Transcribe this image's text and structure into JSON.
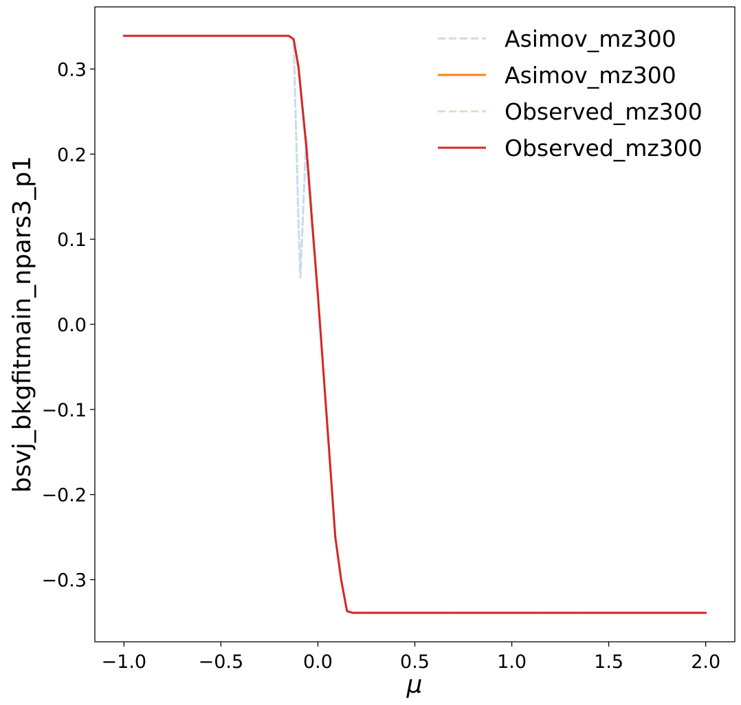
{
  "chart_data": {
    "type": "line",
    "title": "",
    "xlabel": "μ",
    "ylabel": "bsvj_bkgfitmain_npars3_p1",
    "xlim": [
      -1.15,
      2.15
    ],
    "ylim": [
      -0.373,
      0.373
    ],
    "x_ticks": [
      -1.0,
      -0.5,
      0.0,
      0.5,
      1.0,
      1.5,
      2.0
    ],
    "x_tick_labels": [
      "−1.0",
      "−0.5",
      "0.0",
      "0.5",
      "1.0",
      "1.5",
      "2.0"
    ],
    "y_ticks": [
      0.3,
      0.2,
      0.1,
      0.0,
      -0.1,
      -0.2,
      -0.3
    ],
    "y_tick_labels": [
      "0.3",
      "0.2",
      "0.1",
      "0.0",
      "−0.1",
      "−0.2",
      "−0.3"
    ],
    "grid": false,
    "legend_position": "top-right",
    "series": [
      {
        "name": "Asimov_mz300",
        "color": "#c6dbef",
        "style": "dashed",
        "x": [
          -1.0,
          -0.5,
          -0.15,
          -0.125,
          -0.1,
          -0.09,
          -0.06,
          -0.03,
          0.0,
          0.03,
          0.06,
          0.09,
          0.12,
          0.15,
          0.18,
          0.5,
          1.0,
          1.5,
          2.0
        ],
        "y": [
          0.339,
          0.339,
          0.339,
          0.335,
          0.12,
          0.055,
          0.22,
          0.13,
          0.035,
          -0.06,
          -0.155,
          -0.25,
          -0.3,
          -0.337,
          -0.339,
          -0.339,
          -0.339,
          -0.339,
          -0.339
        ]
      },
      {
        "name": "Asimov_mz300",
        "color": "#ff7f0e",
        "style": "solid",
        "x": [
          -1.0,
          -0.5,
          -0.15,
          -0.125,
          -0.1,
          -0.06,
          -0.03,
          0.0,
          0.03,
          0.06,
          0.09,
          0.12,
          0.15,
          0.18,
          0.5,
          1.0,
          1.5,
          2.0
        ],
        "y": [
          0.339,
          0.339,
          0.339,
          0.335,
          0.3,
          0.21,
          0.12,
          0.035,
          -0.06,
          -0.155,
          -0.25,
          -0.3,
          -0.337,
          -0.339,
          -0.339,
          -0.339,
          -0.339,
          -0.339
        ]
      },
      {
        "name": "Observed_mz300",
        "color": "#c7e9c0",
        "style": "dashed",
        "x": [
          -1.0,
          -0.5,
          -0.15,
          -0.125,
          -0.1,
          -0.06,
          -0.03,
          0.0,
          0.03,
          0.06,
          0.09,
          0.12,
          0.15,
          0.18,
          0.5,
          1.0,
          1.5,
          2.0
        ],
        "y": [
          0.339,
          0.339,
          0.339,
          0.335,
          0.3,
          0.21,
          0.12,
          0.035,
          -0.06,
          -0.155,
          -0.25,
          -0.3,
          -0.337,
          -0.339,
          -0.339,
          -0.339,
          -0.339,
          -0.339
        ]
      },
      {
        "name": "Observed_mz300",
        "color": "#d62728",
        "style": "solid",
        "x": [
          -1.0,
          -0.5,
          -0.15,
          -0.125,
          -0.1,
          -0.06,
          -0.03,
          0.0,
          0.03,
          0.06,
          0.09,
          0.12,
          0.15,
          0.18,
          0.5,
          1.0,
          1.5,
          2.0
        ],
        "y": [
          0.339,
          0.339,
          0.339,
          0.335,
          0.303,
          0.21,
          0.12,
          0.035,
          -0.06,
          -0.155,
          -0.25,
          -0.3,
          -0.337,
          -0.339,
          -0.339,
          -0.339,
          -0.339,
          -0.339
        ]
      }
    ]
  }
}
